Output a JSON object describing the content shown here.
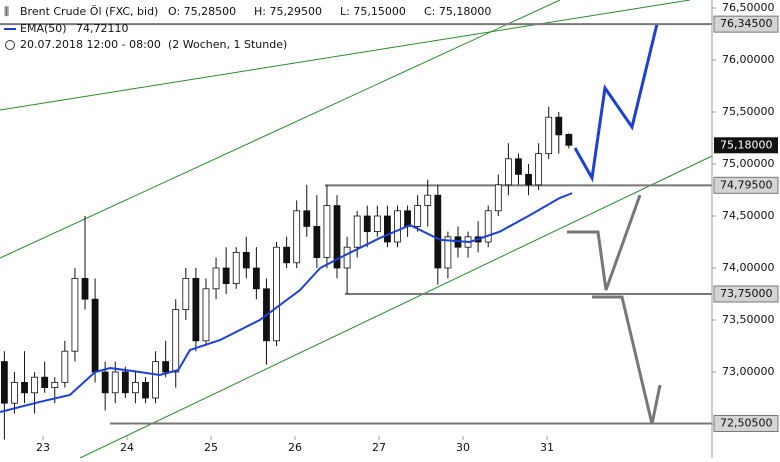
{
  "chart_data": {
    "type": "candlestick",
    "title": "Brent Crude Öl (FXC, bid)",
    "ohlc_labels": [
      "O: 75,28500",
      "H: 75,29500",
      "L: 75,15000",
      "C: 75,18000"
    ],
    "period": "20.07.2018 12:00 - 08:00",
    "range": "(2 Wochen, 1 Stunde)",
    "xlim": [
      -0.512,
      7.964
    ],
    "ylim": [
      72.173,
      76.577
    ],
    "xticks": [
      {
        "value": 0,
        "label": "23"
      },
      {
        "value": 1,
        "label": "24"
      },
      {
        "value": 2,
        "label": "25"
      },
      {
        "value": 3,
        "label": "26"
      },
      {
        "value": 4,
        "label": "27"
      },
      {
        "value": 5,
        "label": "30"
      },
      {
        "value": 6,
        "label": "31"
      }
    ],
    "yticks": [
      {
        "value": 72.5,
        "label": "72,50000"
      },
      {
        "value": 73,
        "label": "73,00000"
      },
      {
        "value": 73.5,
        "label": "73,50000"
      },
      {
        "value": 74,
        "label": "74,00000"
      },
      {
        "value": 74.5,
        "label": "74,50000"
      },
      {
        "value": 75,
        "label": "75,00000"
      },
      {
        "value": 75.5,
        "label": "75,50000"
      },
      {
        "value": 76,
        "label": "76,00000"
      },
      {
        "value": 76.5,
        "label": "76,50000"
      }
    ],
    "levels": [
      {
        "value": 76.345,
        "label": "76,34500"
      },
      {
        "value": 74.795,
        "label": "74,79500"
      },
      {
        "value": 73.75,
        "label": "73,75000"
      },
      {
        "value": 72.505,
        "label": "72,50500"
      }
    ],
    "current": {
      "value": 75.18,
      "label": "75,18000"
    },
    "x": [
      -0.46,
      -0.34,
      -0.22,
      -0.1,
      0.02,
      0.14,
      0.26,
      0.38,
      0.5,
      0.62,
      0.74,
      0.86,
      0.98,
      1.1,
      1.22,
      1.34,
      1.46,
      1.58,
      1.7,
      1.82,
      1.94,
      2.06,
      2.18,
      2.3,
      2.42,
      2.54,
      2.66,
      2.78,
      2.9,
      3.02,
      3.14,
      3.26,
      3.38,
      3.5,
      3.62,
      3.74,
      3.86,
      3.98,
      4.1,
      4.22,
      4.34,
      4.46,
      4.58,
      4.7,
      4.82,
      4.94,
      5.06,
      5.18,
      5.3,
      5.42,
      5.54,
      5.66,
      5.78,
      5.9,
      6.02,
      6.14,
      6.26
    ],
    "open": [
      73.1,
      72.7,
      72.9,
      72.8,
      72.95,
      72.85,
      72.9,
      73.2,
      73.9,
      73.7,
      73.0,
      72.8,
      73.0,
      72.8,
      72.9,
      72.75,
      73.1,
      73.0,
      73.6,
      73.9,
      73.3,
      73.8,
      74.0,
      73.85,
      74.15,
      74.0,
      73.8,
      73.3,
      74.2,
      74.05,
      74.55,
      74.4,
      74.1,
      74.6,
      74.0,
      74.2,
      74.5,
      74.35,
      74.5,
      74.25,
      74.55,
      74.4,
      74.6,
      74.7,
      74.0,
      74.3,
      74.2,
      74.3,
      74.25,
      74.55,
      74.8,
      75.05,
      74.9,
      74.8,
      75.1,
      75.45,
      75.285
    ],
    "high": [
      73.2,
      73.0,
      73.2,
      73.0,
      73.1,
      72.95,
      73.3,
      74.0,
      74.5,
      73.9,
      73.1,
      73.1,
      73.05,
      73.0,
      72.95,
      73.2,
      73.3,
      73.7,
      74.0,
      74.0,
      73.9,
      74.1,
      74.2,
      74.2,
      74.3,
      74.2,
      73.9,
      74.25,
      74.3,
      74.65,
      74.8,
      74.7,
      74.8,
      74.7,
      74.3,
      74.55,
      74.6,
      74.6,
      74.6,
      74.6,
      74.6,
      74.7,
      74.85,
      74.8,
      74.35,
      74.4,
      74.35,
      74.45,
      74.6,
      74.9,
      75.2,
      75.1,
      75.0,
      75.2,
      75.55,
      75.5,
      75.295
    ],
    "low": [
      72.35,
      72.6,
      72.7,
      72.6,
      72.8,
      72.7,
      72.85,
      73.1,
      73.6,
      72.9,
      72.63,
      72.7,
      72.75,
      72.7,
      72.7,
      72.7,
      72.95,
      72.85,
      73.5,
      73.2,
      73.25,
      73.7,
      73.75,
      73.8,
      73.9,
      73.7,
      73.07,
      73.25,
      74.0,
      74.0,
      74.3,
      74.0,
      74.0,
      73.9,
      73.75,
      74.1,
      74.2,
      74.3,
      74.2,
      74.2,
      74.3,
      74.35,
      74.4,
      73.84,
      73.9,
      74.1,
      74.1,
      74.15,
      74.2,
      74.5,
      74.7,
      74.8,
      74.7,
      74.75,
      75.05,
      75.1,
      75.15
    ],
    "close": [
      72.7,
      72.9,
      72.8,
      72.95,
      72.85,
      72.9,
      73.2,
      73.9,
      73.7,
      73.0,
      72.8,
      73.0,
      72.8,
      72.9,
      72.75,
      73.1,
      73.0,
      73.6,
      73.9,
      73.3,
      73.8,
      74.0,
      73.85,
      74.15,
      74.0,
      73.8,
      73.3,
      74.2,
      74.05,
      74.55,
      74.4,
      74.1,
      74.6,
      74.0,
      74.2,
      74.5,
      74.35,
      74.5,
      74.25,
      74.55,
      74.4,
      74.6,
      74.7,
      74.0,
      74.3,
      74.2,
      74.3,
      74.25,
      74.55,
      74.8,
      75.05,
      74.9,
      74.8,
      75.1,
      75.45,
      75.28,
      75.18
    ],
    "series": [
      {
        "name": "EMA(50)",
        "last_value_label": "74,72110",
        "color": "#1c3fd8",
        "x": [
          -0.51,
          -0.04,
          0.32,
          0.62,
          0.8,
          1.15,
          1.39,
          1.61,
          1.75,
          2.11,
          2.58,
          3.06,
          3.3,
          3.6,
          4.01,
          4.37,
          4.73,
          5.08,
          5.44,
          5.8,
          6.15,
          6.3
        ],
        "values": [
          72.615,
          72.712,
          72.779,
          73.0,
          73.038,
          73.0,
          72.971,
          73.019,
          73.212,
          73.308,
          73.5,
          73.788,
          74.0,
          74.125,
          74.288,
          74.413,
          74.27,
          74.25,
          74.35,
          74.51,
          74.673,
          74.72
        ]
      }
    ],
    "grid": false
  }
}
